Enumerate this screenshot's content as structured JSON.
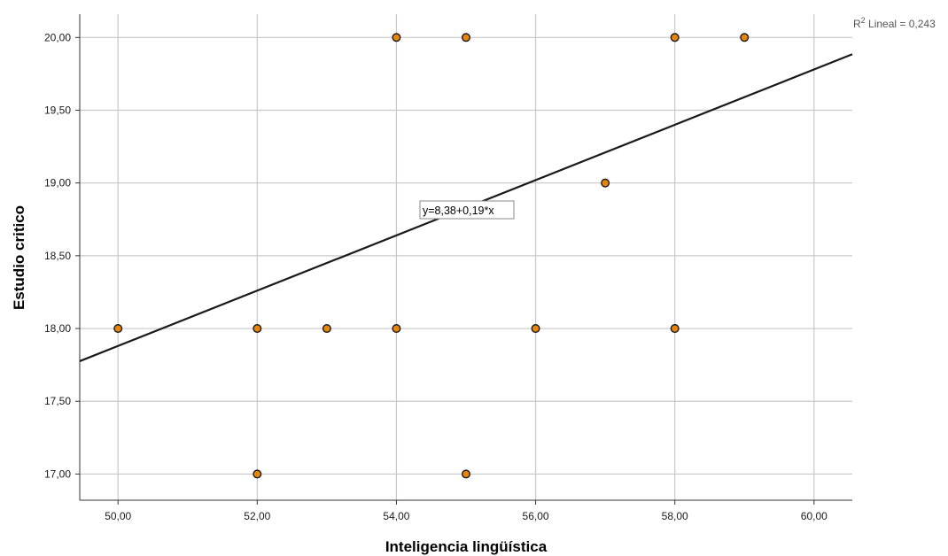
{
  "chart_data": {
    "type": "scatter",
    "title": "",
    "xlabel": "Inteligencia lingüística",
    "ylabel": "Estudio critico",
    "xlim": [
      49.45,
      60.55
    ],
    "ylim": [
      16.82,
      20.16
    ],
    "x_ticks": [
      "50,00",
      "52,00",
      "54,00",
      "56,00",
      "58,00",
      "60,00"
    ],
    "x_tick_values": [
      50,
      52,
      54,
      56,
      58,
      60
    ],
    "y_ticks": [
      "17,00",
      "17,50",
      "18,00",
      "18,50",
      "19,00",
      "19,50",
      "20,00"
    ],
    "y_tick_values": [
      17,
      17.5,
      18,
      18.5,
      19,
      19.5,
      20
    ],
    "points": [
      {
        "x": 50,
        "y": 18
      },
      {
        "x": 52,
        "y": 18
      },
      {
        "x": 52,
        "y": 17
      },
      {
        "x": 53,
        "y": 18
      },
      {
        "x": 54,
        "y": 20
      },
      {
        "x": 54,
        "y": 18
      },
      {
        "x": 55,
        "y": 20
      },
      {
        "x": 55,
        "y": 17
      },
      {
        "x": 56,
        "y": 18
      },
      {
        "x": 57,
        "y": 19
      },
      {
        "x": 58,
        "y": 20
      },
      {
        "x": 58,
        "y": 18
      },
      {
        "x": 59,
        "y": 20
      }
    ],
    "fit_line": {
      "intercept": 8.38,
      "slope": 0.19,
      "equation_label": "y=8,38+0,19*x"
    },
    "r2_label": {
      "prefix": "R",
      "superscript": "2",
      "text": " Lineal = 0,243"
    },
    "grid": true,
    "colors": {
      "point_fill": "#e8860c",
      "point_stroke": "#1a1a1a",
      "grid": "#c8c8c8",
      "line": "#1a1a1a"
    }
  }
}
